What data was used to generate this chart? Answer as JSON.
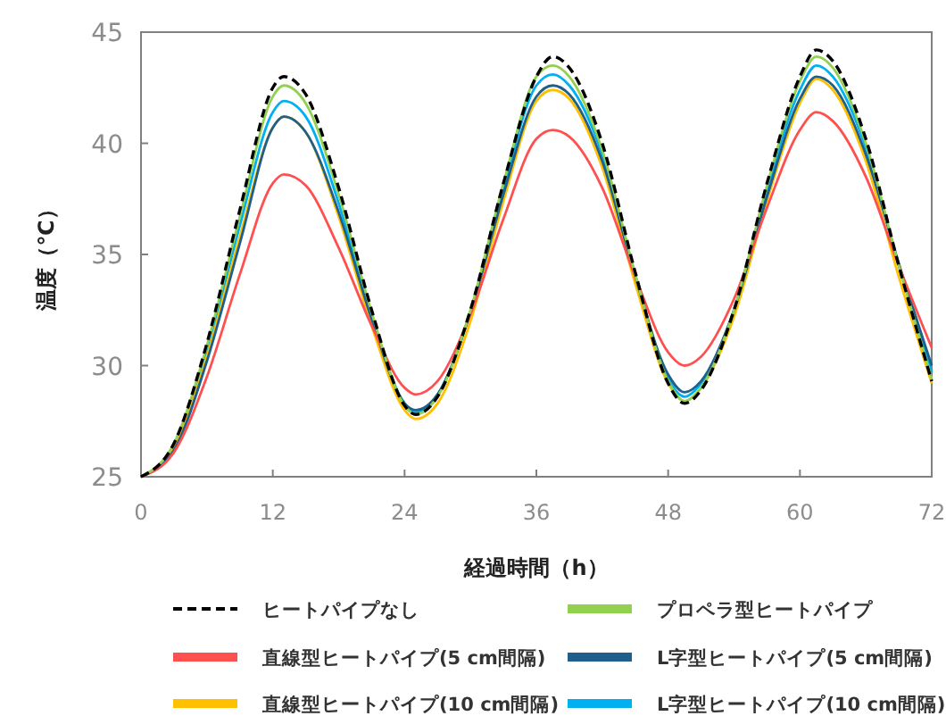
{
  "chart_data": {
    "type": "line",
    "xlabel": "経過時間（h）",
    "ylabel": "温度（℃）",
    "x": [
      0,
      3,
      6,
      9,
      12,
      13,
      15,
      18,
      21,
      24,
      25,
      27,
      30,
      33,
      36,
      37.5,
      39,
      42,
      45,
      48,
      49.5,
      51,
      54,
      57,
      60,
      61.5,
      63,
      66,
      69,
      72
    ],
    "xlim": [
      0,
      72
    ],
    "xticks": [
      0,
      12,
      24,
      36,
      48,
      60,
      72
    ],
    "ylim": [
      25,
      45
    ],
    "yticks": [
      25,
      30,
      35,
      40,
      45
    ],
    "grid": false,
    "legend": "bottom",
    "marker": "none",
    "series": [
      {
        "name": "ヒートパイプなし",
        "color": "#000000",
        "line_style": "dashed",
        "values": [
          25,
          26.5,
          31,
          37,
          42.5,
          43,
          42.2,
          38,
          32.5,
          28.2,
          27.8,
          28.6,
          32.5,
          38.2,
          43,
          43.9,
          43.4,
          40,
          34.2,
          29.2,
          28.3,
          28.9,
          32.5,
          38.2,
          43,
          44.2,
          43.7,
          40.2,
          34.5,
          29.3
        ]
      },
      {
        "name": "プロペラ型ヒートパイプ",
        "color": "#92d050",
        "line_style": "solid",
        "values": [
          25,
          26.5,
          30.9,
          36.7,
          42.1,
          42.6,
          41.8,
          37.7,
          32.4,
          28.2,
          27.8,
          28.6,
          32.5,
          38.2,
          43,
          43.5,
          43,
          39.7,
          34.1,
          29.3,
          28.4,
          29,
          32.5,
          38.1,
          42.8,
          43.9,
          43.4,
          40,
          34.5,
          29.4
        ]
      },
      {
        "name": "直線型ヒートパイプ(5 cm間隔)",
        "color": "#ff5050",
        "line_style": "solid",
        "values": [
          25,
          26.1,
          29.5,
          34.1,
          38.2,
          38.6,
          38.1,
          35.3,
          31.8,
          29,
          28.7,
          29.3,
          32.3,
          36.6,
          40.2,
          40.6,
          40.3,
          38,
          34,
          30.6,
          30,
          30.4,
          33,
          37.1,
          40.6,
          41.4,
          41,
          38.5,
          34.5,
          30.8
        ]
      },
      {
        "name": "L字型ヒートパイプ(5 cm間隔)",
        "color": "#1f5f8b",
        "line_style": "solid",
        "values": [
          25,
          26.2,
          30.2,
          35.5,
          40.7,
          41.2,
          40.5,
          36.9,
          32.1,
          28.3,
          28,
          28.7,
          32.4,
          37.7,
          42.1,
          42.6,
          42.2,
          39.2,
          34,
          29.6,
          28.8,
          29.3,
          32.5,
          37.6,
          42,
          43,
          42.6,
          39.5,
          34.6,
          30
        ]
      },
      {
        "name": "直線型ヒートパイプ(10 cm間隔)",
        "color": "#ffc000",
        "line_style": "solid",
        "values": [
          25,
          26.3,
          30.4,
          35.8,
          40.7,
          41.2,
          40.5,
          36.7,
          31.8,
          28,
          27.6,
          28.3,
          32,
          37.4,
          41.9,
          42.4,
          42,
          38.9,
          33.7,
          29.2,
          28.4,
          29,
          32.2,
          37.4,
          41.8,
          42.9,
          42.4,
          39.2,
          34,
          29.2
        ]
      },
      {
        "name": "L字型ヒートパイプ(10 cm間隔)",
        "color": "#00b0f0",
        "line_style": "solid",
        "values": [
          25,
          26.35,
          30.6,
          36.3,
          41.4,
          41.9,
          41.2,
          37.3,
          32.2,
          28.3,
          27.9,
          28.7,
          32.4,
          38,
          42.6,
          43.1,
          42.6,
          39.5,
          34.1,
          29.4,
          28.6,
          29.2,
          32.5,
          37.9,
          42.4,
          43.5,
          43,
          39.8,
          34.5,
          29.7
        ]
      }
    ]
  }
}
